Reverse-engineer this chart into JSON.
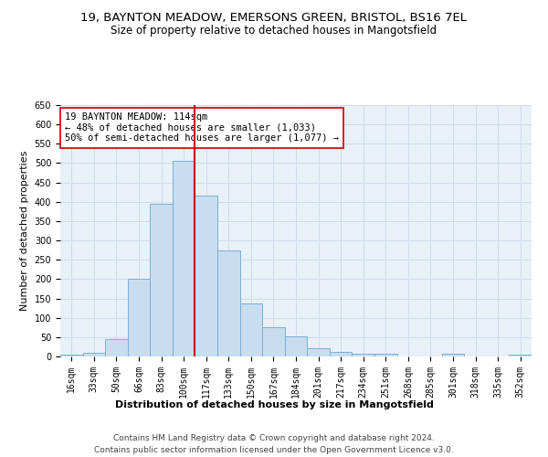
{
  "title_line1": "19, BAYNTON MEADOW, EMERSONS GREEN, BRISTOL, BS16 7EL",
  "title_line2": "Size of property relative to detached houses in Mangotsfield",
  "xlabel": "Distribution of detached houses by size in Mangotsfield",
  "ylabel": "Number of detached properties",
  "categories": [
    "16sqm",
    "33sqm",
    "50sqm",
    "66sqm",
    "83sqm",
    "100sqm",
    "117sqm",
    "133sqm",
    "150sqm",
    "167sqm",
    "184sqm",
    "201sqm",
    "217sqm",
    "234sqm",
    "251sqm",
    "268sqm",
    "285sqm",
    "301sqm",
    "318sqm",
    "335sqm",
    "352sqm"
  ],
  "bar_values": [
    5,
    10,
    45,
    200,
    395,
    505,
    415,
    275,
    138,
    75,
    52,
    22,
    12,
    8,
    8,
    0,
    0,
    6,
    0,
    0,
    4
  ],
  "bar_color": "#c9ddf0",
  "bar_edge_color": "#7aafd4",
  "vline_x": 5.5,
  "vline_color": "#cc0000",
  "annotation_text": "19 BAYNTON MEADOW: 114sqm\n← 48% of detached houses are smaller (1,033)\n50% of semi-detached houses are larger (1,077) →",
  "annotation_box_color": "#ffffff",
  "annotation_box_edge": "#cc0000",
  "ylim": [
    0,
    650
  ],
  "yticks": [
    0,
    50,
    100,
    150,
    200,
    250,
    300,
    350,
    400,
    450,
    500,
    550,
    600,
    650
  ],
  "grid_color": "#d0dcea",
  "background_color": "#e8f0f8",
  "footer_line1": "Contains HM Land Registry data © Crown copyright and database right 2024.",
  "footer_line2": "Contains public sector information licensed under the Open Government Licence v3.0.",
  "title_fontsize": 9.5,
  "subtitle_fontsize": 8.5,
  "axis_label_fontsize": 8,
  "tick_fontsize": 7,
  "annotation_fontsize": 7.5,
  "footer_fontsize": 6.5
}
